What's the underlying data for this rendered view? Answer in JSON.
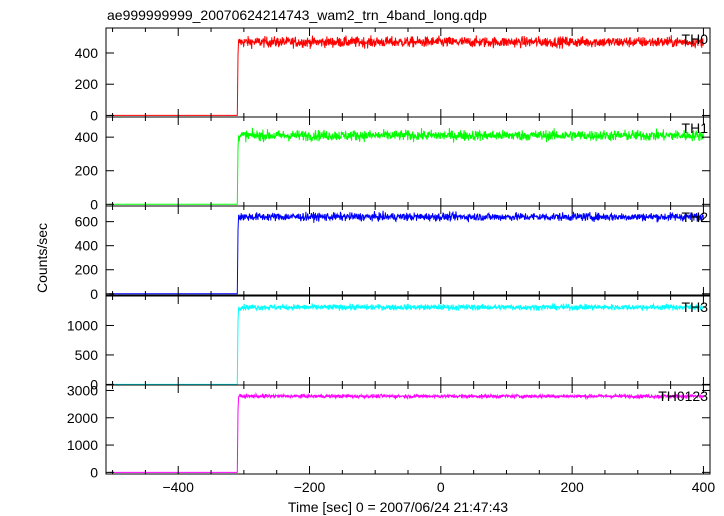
{
  "chart_data": {
    "type": "line",
    "title": "ae999999999_20070624214743_wam2_trn_4band_long.qdp",
    "xlabel": "Time [sec] 0 = 2007/06/24 21:47:43",
    "ylabel": "Counts/sec",
    "xlim": [
      -510,
      410
    ],
    "x_ticks": [
      -400,
      -200,
      0,
      200,
      400
    ],
    "x_tick_labels": [
      "−400",
      "−200",
      "0",
      "200",
      "400"
    ],
    "step_time": -310,
    "panels": [
      {
        "name": "TH0",
        "color": "#ff0000",
        "ylim": [
          -10,
          560
        ],
        "y_ticks": [
          0,
          200,
          400
        ],
        "y_tick_labels": [
          "0",
          "200",
          "400"
        ],
        "baseline": 0,
        "level": 470,
        "noise": 28
      },
      {
        "name": "TH1",
        "color": "#00ff00",
        "ylim": [
          -10,
          520
        ],
        "y_ticks": [
          0,
          200,
          400
        ],
        "y_tick_labels": [
          "0",
          "200",
          "400"
        ],
        "baseline": 0,
        "level": 410,
        "noise": 26
      },
      {
        "name": "TH2",
        "color": "#0000ff",
        "ylim": [
          -10,
          730
        ],
        "y_ticks": [
          0,
          200,
          400,
          600
        ],
        "y_tick_labels": [
          "0",
          "200",
          "400",
          "600"
        ],
        "baseline": 0,
        "level": 640,
        "noise": 28
      },
      {
        "name": "TH3",
        "color": "#00ffff",
        "ylim": [
          -10,
          1500
        ],
        "y_ticks": [
          0,
          500,
          1000
        ],
        "y_tick_labels": [
          "0",
          "500",
          "1000"
        ],
        "baseline": 0,
        "level": 1310,
        "noise": 40
      },
      {
        "name": "TH0123",
        "color": "#ff00ff",
        "ylim": [
          -60,
          3200
        ],
        "y_ticks": [
          0,
          1000,
          2000,
          3000
        ],
        "y_tick_labels": [
          "0",
          "1000",
          "2000",
          "3000"
        ],
        "baseline": 0,
        "level": 2790,
        "noise": 55
      }
    ],
    "grid": false,
    "legend": "per-panel label at top-right"
  }
}
